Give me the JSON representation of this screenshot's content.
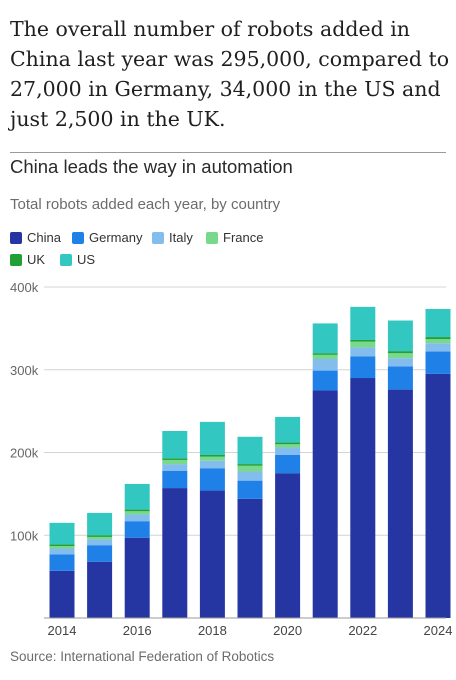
{
  "intro_text": "The overall number of robots added in China last year was 295,000, compared to 27,000 in Germany, 34,000 in the US and just 2,500 in the UK.",
  "source": "Source: International Federation of Robotics",
  "colors": {
    "China": "#2536a3",
    "Germany": "#1f80e8",
    "Italy": "#83bdee",
    "France": "#78d98d",
    "UK": "#22a036",
    "US": "#33c7c1"
  },
  "chart_data": {
    "type": "bar",
    "stacked": true,
    "title": "China leads the way in automation",
    "subtitle": "Total robots added each year, by country",
    "xlabel": "",
    "ylabel": "",
    "legend_placement": "top-left",
    "grid": true,
    "categories": [
      "2014",
      "2015",
      "2016",
      "2017",
      "2018",
      "2019",
      "2020",
      "2021",
      "2022",
      "2023",
      "2024"
    ],
    "x_tick_labels": [
      "2014",
      "2016",
      "2018",
      "2020",
      "2022",
      "2024"
    ],
    "y_ticks": [
      100000,
      200000,
      300000,
      400000
    ],
    "y_tick_labels": [
      "100k",
      "200k",
      "300k",
      "400k"
    ],
    "ylim": [
      0,
      400000
    ],
    "series": [
      {
        "name": "China",
        "values": [
          57000,
          68000,
          97000,
          157000,
          154000,
          144000,
          175000,
          275000,
          290000,
          276000,
          295000
        ]
      },
      {
        "name": "Germany",
        "values": [
          20000,
          20000,
          20000,
          21000,
          27000,
          22000,
          22000,
          24000,
          26000,
          28000,
          27000
        ]
      },
      {
        "name": "Italy",
        "values": [
          7000,
          7000,
          8000,
          8000,
          9000,
          11000,
          9000,
          14000,
          11000,
          10000,
          10000
        ]
      },
      {
        "name": "France",
        "values": [
          3000,
          3000,
          4000,
          5000,
          5000,
          7000,
          4000,
          5000,
          7000,
          6000,
          5000
        ]
      },
      {
        "name": "UK",
        "values": [
          2000,
          2000,
          2000,
          2000,
          2000,
          2000,
          2000,
          2000,
          2000,
          2500,
          2500
        ]
      },
      {
        "name": "US",
        "values": [
          26000,
          27000,
          31000,
          33000,
          40000,
          33000,
          31000,
          36000,
          40000,
          37000,
          34000
        ]
      }
    ]
  }
}
